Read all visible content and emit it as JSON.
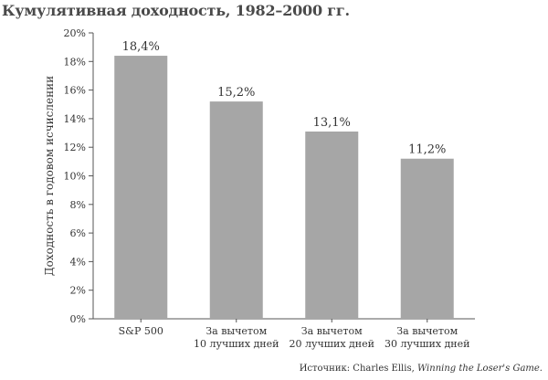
{
  "chart_data": {
    "type": "bar",
    "title": "Кумулятивная доходность, 1982–2000 гг.",
    "ylabel": "Доходность в годовом исчислении",
    "xlabel": "",
    "ylim": [
      0,
      20
    ],
    "yticks": [
      "0%",
      "2%",
      "4%",
      "6%",
      "8%",
      "10%",
      "12%",
      "14%",
      "16%",
      "18%",
      "20%"
    ],
    "categories": [
      [
        "S&P 500"
      ],
      [
        "За вычетом",
        "10 лучших дней"
      ],
      [
        "За вычетом",
        "20 лучших дней"
      ],
      [
        "За вычетом",
        "30 лучших дней"
      ]
    ],
    "values": [
      18.4,
      15.2,
      13.1,
      11.2
    ],
    "data_labels": [
      "18,4%",
      "15,2%",
      "13,1%",
      "11,2%"
    ],
    "bar_color": "#a6a6a6",
    "grid": false,
    "legend": "none"
  },
  "source": {
    "prefix": "Источник: Charles Ellis, ",
    "work": "Winning the Loser's Game."
  }
}
